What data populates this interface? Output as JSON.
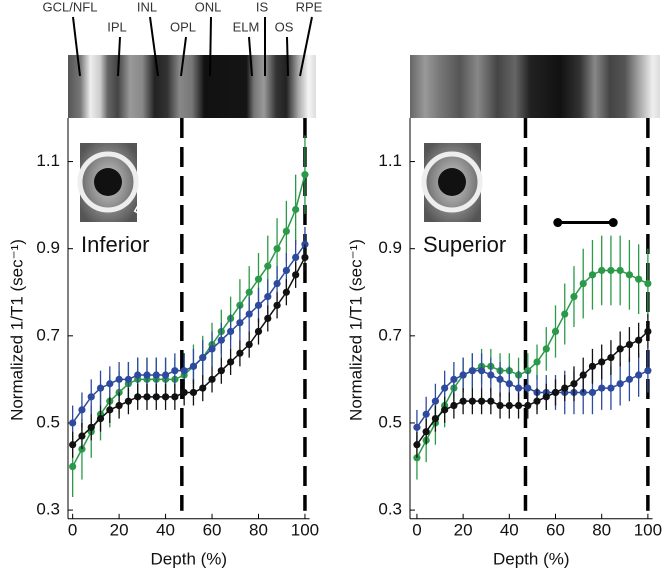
{
  "chart_data": [
    {
      "type": "line",
      "annotation": "Inferior",
      "x_label": "Depth (%)",
      "y_label": "Normalized 1/T1 (sec⁻¹)",
      "layer_labels": [
        "GCL/NFL",
        "IPL",
        "INL",
        "OPL",
        "ONL",
        "ELM",
        "IS",
        "OS",
        "RPE"
      ],
      "xlim": [
        -2,
        102
      ],
      "ylim": [
        0.28,
        1.2
      ],
      "xticks": [
        0,
        20,
        40,
        60,
        80,
        100
      ],
      "yticks": [
        0.3,
        0.5,
        0.7,
        0.9,
        1.1
      ],
      "vlines": [
        47,
        100
      ],
      "x": [
        0,
        4,
        8,
        12,
        16,
        20,
        24,
        28,
        32,
        36,
        40,
        44,
        48,
        52,
        56,
        60,
        64,
        68,
        72,
        76,
        80,
        84,
        88,
        92,
        96,
        100
      ],
      "series": [
        {
          "color": "#2a9a48",
          "values": [
            0.4,
            0.44,
            0.48,
            0.52,
            0.55,
            0.57,
            0.59,
            0.6,
            0.6,
            0.6,
            0.6,
            0.6,
            0.61,
            0.63,
            0.65,
            0.68,
            0.71,
            0.74,
            0.77,
            0.8,
            0.83,
            0.86,
            0.9,
            0.94,
            0.99,
            1.07
          ],
          "errors": [
            0.07,
            0.07,
            0.06,
            0.06,
            0.06,
            0.05,
            0.05,
            0.05,
            0.05,
            0.05,
            0.05,
            0.05,
            0.05,
            0.05,
            0.05,
            0.05,
            0.05,
            0.05,
            0.06,
            0.06,
            0.06,
            0.07,
            0.07,
            0.07,
            0.08,
            0.09
          ]
        },
        {
          "color": "#2e4a9e",
          "values": [
            0.5,
            0.53,
            0.56,
            0.58,
            0.59,
            0.6,
            0.6,
            0.61,
            0.61,
            0.61,
            0.61,
            0.62,
            0.62,
            0.63,
            0.65,
            0.67,
            0.69,
            0.71,
            0.73,
            0.75,
            0.77,
            0.79,
            0.82,
            0.85,
            0.88,
            0.91
          ],
          "errors": [
            0.04,
            0.04,
            0.04,
            0.04,
            0.04,
            0.04,
            0.04,
            0.04,
            0.04,
            0.04,
            0.04,
            0.04,
            0.04,
            0.04,
            0.04,
            0.04,
            0.04,
            0.04,
            0.04,
            0.04,
            0.04,
            0.04,
            0.04,
            0.04,
            0.04,
            0.04
          ]
        },
        {
          "color": "#111111",
          "values": [
            0.45,
            0.47,
            0.49,
            0.51,
            0.53,
            0.54,
            0.55,
            0.56,
            0.56,
            0.56,
            0.56,
            0.56,
            0.57,
            0.57,
            0.58,
            0.6,
            0.62,
            0.64,
            0.66,
            0.68,
            0.71,
            0.74,
            0.77,
            0.8,
            0.84,
            0.88
          ],
          "errors": [
            0.03,
            0.03,
            0.03,
            0.03,
            0.03,
            0.03,
            0.03,
            0.03,
            0.03,
            0.03,
            0.03,
            0.03,
            0.03,
            0.03,
            0.03,
            0.03,
            0.03,
            0.03,
            0.03,
            0.03,
            0.03,
            0.03,
            0.03,
            0.03,
            0.03,
            0.03
          ]
        }
      ]
    },
    {
      "type": "line",
      "annotation": "Superior",
      "x_label": "Depth (%)",
      "y_label": "Normalized 1/T1 (sec⁻¹)",
      "xlim": [
        -3,
        102
      ],
      "ylim": [
        0.28,
        1.2
      ],
      "xticks": [
        0,
        20,
        40,
        60,
        80,
        100
      ],
      "yticks": [
        0.3,
        0.5,
        0.7,
        0.9,
        1.1
      ],
      "vlines": [
        47,
        100
      ],
      "significance_bar": {
        "x": [
          61,
          85
        ],
        "y": 0.96
      },
      "x": [
        0,
        4,
        8,
        12,
        16,
        20,
        24,
        28,
        32,
        36,
        40,
        44,
        48,
        52,
        56,
        60,
        64,
        68,
        72,
        76,
        80,
        84,
        88,
        92,
        96,
        100
      ],
      "series": [
        {
          "color": "#2a9a48",
          "values": [
            0.42,
            0.46,
            0.5,
            0.54,
            0.58,
            0.61,
            0.62,
            0.63,
            0.63,
            0.62,
            0.62,
            0.61,
            0.62,
            0.64,
            0.67,
            0.71,
            0.75,
            0.79,
            0.82,
            0.84,
            0.85,
            0.85,
            0.85,
            0.84,
            0.83,
            0.82
          ],
          "errors": [
            0.05,
            0.05,
            0.05,
            0.05,
            0.04,
            0.04,
            0.04,
            0.04,
            0.04,
            0.04,
            0.04,
            0.04,
            0.04,
            0.04,
            0.05,
            0.06,
            0.07,
            0.07,
            0.08,
            0.08,
            0.08,
            0.08,
            0.08,
            0.08,
            0.08,
            0.08
          ]
        },
        {
          "color": "#2e4a9e",
          "values": [
            0.49,
            0.52,
            0.55,
            0.58,
            0.6,
            0.61,
            0.62,
            0.62,
            0.61,
            0.6,
            0.59,
            0.58,
            0.58,
            0.57,
            0.57,
            0.57,
            0.57,
            0.57,
            0.57,
            0.57,
            0.58,
            0.58,
            0.59,
            0.6,
            0.61,
            0.62
          ],
          "errors": [
            0.04,
            0.04,
            0.04,
            0.04,
            0.04,
            0.04,
            0.04,
            0.04,
            0.04,
            0.04,
            0.04,
            0.04,
            0.04,
            0.04,
            0.04,
            0.04,
            0.05,
            0.05,
            0.05,
            0.05,
            0.05,
            0.05,
            0.05,
            0.05,
            0.05,
            0.05
          ]
        },
        {
          "color": "#111111",
          "values": [
            0.45,
            0.48,
            0.51,
            0.53,
            0.54,
            0.55,
            0.55,
            0.55,
            0.55,
            0.54,
            0.54,
            0.54,
            0.54,
            0.55,
            0.56,
            0.57,
            0.58,
            0.59,
            0.61,
            0.63,
            0.64,
            0.65,
            0.67,
            0.68,
            0.69,
            0.71
          ],
          "errors": [
            0.03,
            0.03,
            0.03,
            0.03,
            0.03,
            0.03,
            0.03,
            0.03,
            0.03,
            0.03,
            0.03,
            0.03,
            0.03,
            0.03,
            0.03,
            0.03,
            0.03,
            0.04,
            0.04,
            0.04,
            0.04,
            0.04,
            0.04,
            0.04,
            0.04,
            0.04
          ]
        }
      ]
    }
  ]
}
